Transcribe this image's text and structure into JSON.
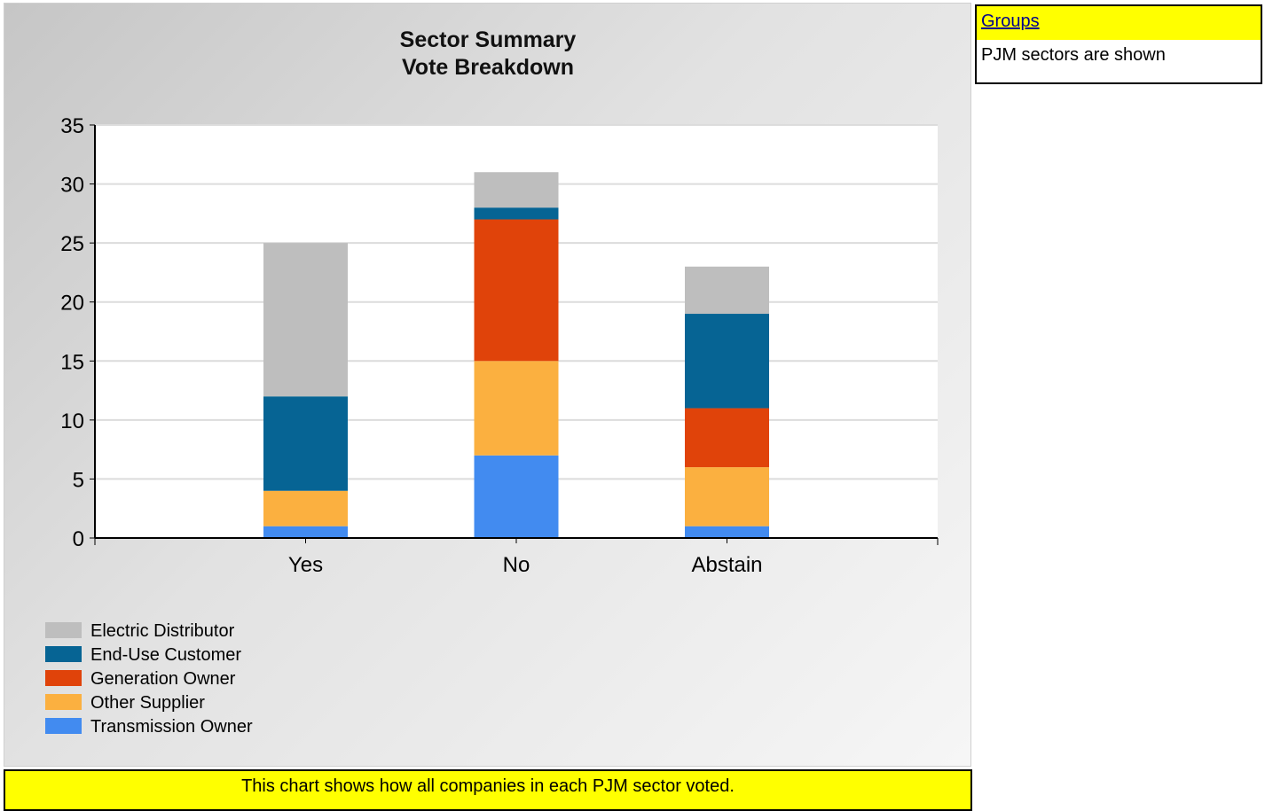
{
  "chart_data": {
    "type": "bar",
    "stacked": true,
    "title": "Sector Summary",
    "subtitle": "Vote Breakdown",
    "categories": [
      "Yes",
      "No",
      "Abstain"
    ],
    "series": [
      {
        "name": "Transmission Owner",
        "color": "#428bf0",
        "values": [
          1,
          7,
          1
        ]
      },
      {
        "name": "Other Supplier",
        "color": "#fbb040",
        "values": [
          3,
          8,
          5
        ]
      },
      {
        "name": "Generation Owner",
        "color": "#e0430a",
        "values": [
          0,
          12,
          5
        ]
      },
      {
        "name": "End-Use Customer",
        "color": "#066494",
        "values": [
          8,
          1,
          8
        ]
      },
      {
        "name": "Electric Distributor",
        "color": "#bebebe",
        "values": [
          13,
          3,
          4
        ]
      }
    ],
    "legend_order": [
      "Electric Distributor",
      "End-Use Customer",
      "Generation Owner",
      "Other Supplier",
      "Transmission Owner"
    ],
    "yticks": [
      0,
      5,
      10,
      15,
      20,
      25,
      30,
      35
    ],
    "ylim": [
      0,
      35
    ],
    "grid": true,
    "legend_position": "bottom-left"
  },
  "caption": "This chart shows how all companies in each PJM sector voted.",
  "groups": {
    "header": "Groups",
    "text": "PJM sectors are shown"
  }
}
